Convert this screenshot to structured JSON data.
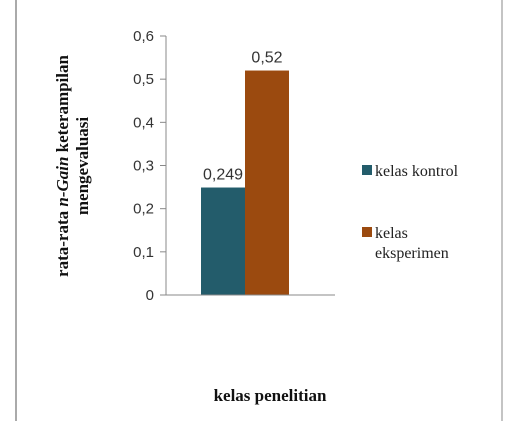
{
  "chart_data": {
    "type": "bar",
    "categories": [
      ""
    ],
    "series": [
      {
        "name": "kelas kontrol",
        "values": [
          0.249
        ],
        "value_label": "0,249",
        "color": "#235C6B"
      },
      {
        "name": "kelas eksperimen",
        "values": [
          0.52
        ],
        "value_label": "0,52",
        "color": "#9B4A0F"
      }
    ],
    "xlabel": "kelas penelitian",
    "ylabel": {
      "line1_prefix": "rata-rata ",
      "line1_italic": "n-Gain",
      "line1_suffix": " keterampilan",
      "line2": "mengevaluasi"
    },
    "ylim": [
      0,
      0.6
    ],
    "yticks": [
      {
        "value": 0,
        "label": "0"
      },
      {
        "value": 0.1,
        "label": "0,1"
      },
      {
        "value": 0.2,
        "label": "0,2"
      },
      {
        "value": 0.3,
        "label": "0,3"
      },
      {
        "value": 0.4,
        "label": "0,4"
      },
      {
        "value": 0.5,
        "label": "0,5"
      },
      {
        "value": 0.6,
        "label": "0,6"
      }
    ],
    "legend": {
      "position": "right",
      "items": [
        {
          "lines": [
            "kelas kontrol"
          ],
          "color": "#235C6B"
        },
        {
          "lines": [
            "kelas",
            "eksperimen"
          ],
          "color": "#9B4A0F"
        }
      ]
    },
    "grid": false
  }
}
